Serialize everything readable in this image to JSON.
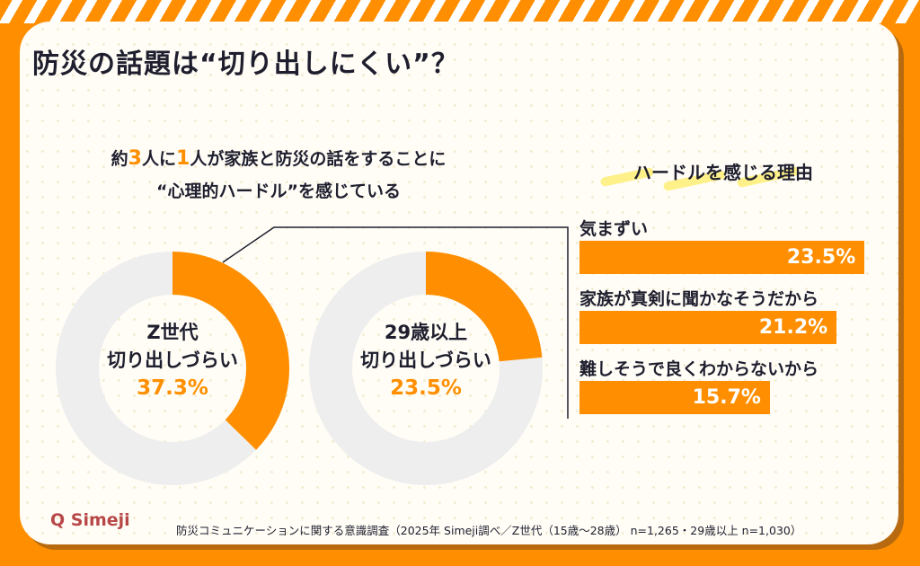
{
  "title": "防災の話題は“切り出しにくい”？",
  "subtitle": {
    "pre": "約",
    "n1": "3",
    "mid": "人に",
    "n2": "1",
    "post": "人が家族と防災の話をすることに",
    "line2": "“心理的ハードル”を感じている"
  },
  "donuts": [
    {
      "line1": "Z世代",
      "line2": "切り出しづらい",
      "percent_label": "37.3%",
      "value": 37.3
    },
    {
      "line1": "29歳以上",
      "line2": "切り出しづらい",
      "percent_label": "23.5%",
      "value": 23.5
    }
  ],
  "reasons": {
    "heading": "ハードルを感じる理由",
    "items": [
      {
        "label": "気まずい",
        "value_label": "23.5%",
        "value": 23.5
      },
      {
        "label": "家族が真剣に聞かなそうだから",
        "value_label": "21.2%",
        "value": 21.2
      },
      {
        "label": "難しそうで良くわからないから",
        "value_label": "15.7%",
        "value": 15.7
      }
    ]
  },
  "logo": "Simeji",
  "source": "防災コミュニケーションに関する意識調査（2025年 Simeji調べ／Z世代（15歳〜28歳） n=1,265・29歳以上 n=1,030）",
  "colors": {
    "accent": "#ff8f00",
    "track": "#eeeeee",
    "text": "#1e1e2e"
  }
}
